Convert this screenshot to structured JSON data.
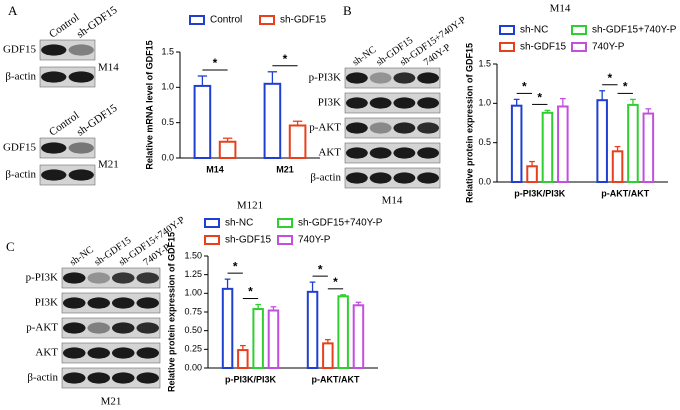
{
  "panel_labels": [
    "A",
    "B",
    "C"
  ],
  "blots": [
    {
      "lanes": [
        "Control",
        "sh-GDF15"
      ],
      "rows": [
        "GDF15",
        "β-actin"
      ],
      "cell_line": "M14"
    },
    {
      "lanes": [
        "Control",
        "sh-GDF15"
      ],
      "rows": [
        "GDF15",
        "β-actin"
      ],
      "cell_line": "M21"
    },
    {
      "lanes": [
        "sh-NC",
        "sh-GDF15",
        "sh-GDF15+740Y-P",
        "740Y-P"
      ],
      "rows": [
        "p-PI3K",
        "PI3K",
        "p-AKT",
        "AKT",
        "β-actin"
      ],
      "cell_line": "M14"
    },
    {
      "lanes": [
        "sh-NC",
        "sh-GDF15",
        "sh-GDF15+740Y-P",
        "740Y-P"
      ],
      "rows": [
        "p-PI3K",
        "PI3K",
        "p-AKT",
        "AKT",
        "β-actin"
      ],
      "cell_line": "M21"
    }
  ],
  "chart_data": [
    {
      "type": "bar",
      "y_label": "Relative mRNA level of GDF15",
      "categories": [
        "M14",
        "M21"
      ],
      "series": [
        {
          "name": "Control",
          "color": "#1f3fd0",
          "values": [
            1.02,
            1.05
          ],
          "errors": [
            0.14,
            0.17
          ]
        },
        {
          "name": "sh-GDF15",
          "color": "#e8401c",
          "values": [
            0.23,
            0.46
          ],
          "errors": [
            0.05,
            0.06
          ]
        }
      ],
      "ylim": [
        0,
        1.5
      ],
      "yticks": [
        {
          "value": 0,
          "label": "0.0"
        },
        {
          "value": 0.5,
          "label": "0.5"
        },
        {
          "value": 1,
          "label": "1.0"
        },
        {
          "value": 1.5,
          "label": "1.5"
        }
      ],
      "annotations": [
        "*",
        "*"
      ]
    },
    {
      "type": "bar",
      "title": "M14",
      "y_label": "Relative protein expression of GDF15",
      "categories": [
        "p-PI3K/PI3K",
        "p-AKT/AKT"
      ],
      "series": [
        {
          "name": "sh-NC",
          "color": "#1f3fd0",
          "values": [
            0.97,
            1.04
          ],
          "errors": [
            0.08,
            0.12
          ]
        },
        {
          "name": "sh-GDF15",
          "color": "#e8401c",
          "values": [
            0.2,
            0.39
          ],
          "errors": [
            0.06,
            0.06
          ]
        },
        {
          "name": "sh-GDF15+740Y-P",
          "color": "#2fcf2f",
          "values": [
            0.88,
            0.98
          ],
          "errors": [
            0.03,
            0.07
          ]
        },
        {
          "name": "740Y-P",
          "color": "#c34fe0",
          "values": [
            0.96,
            0.87
          ],
          "errors": [
            0.1,
            0.06
          ]
        }
      ],
      "ylim": [
        0,
        1.5
      ],
      "yticks": [
        {
          "value": 0,
          "label": "0.0"
        },
        {
          "value": 0.5,
          "label": "0.5"
        },
        {
          "value": 1,
          "label": "1.0"
        },
        {
          "value": 1.5,
          "label": "1.5"
        }
      ],
      "annotations": [
        "*",
        "*",
        "*",
        "*"
      ]
    },
    {
      "type": "bar",
      "title": "M121",
      "y_label": "Relative protein expression of GDF15",
      "categories": [
        "p-PI3K/PI3K",
        "p-AKT/AKT"
      ],
      "series": [
        {
          "name": "sh-NC",
          "color": "#1f3fd0",
          "values": [
            1.06,
            1.02
          ],
          "errors": [
            0.13,
            0.13
          ]
        },
        {
          "name": "sh-GDF15",
          "color": "#e8401c",
          "values": [
            0.24,
            0.33
          ],
          "errors": [
            0.06,
            0.05
          ]
        },
        {
          "name": "sh-GDF15+740Y-P",
          "color": "#2fcf2f",
          "values": [
            0.79,
            0.96
          ],
          "errors": [
            0.06,
            0.02
          ]
        },
        {
          "name": "740Y-P",
          "color": "#c34fe0",
          "values": [
            0.77,
            0.84
          ],
          "errors": [
            0.05,
            0.04
          ]
        }
      ],
      "ylim": [
        0,
        1.5
      ],
      "yticks": [
        {
          "value": 0,
          "label": "0.00"
        },
        {
          "value": 0.25,
          "label": "0.25"
        },
        {
          "value": 0.5,
          "label": "0.50"
        },
        {
          "value": 0.75,
          "label": "0.75"
        },
        {
          "value": 1,
          "label": "1.00"
        },
        {
          "value": 1.25,
          "label": "1.25"
        },
        {
          "value": 1.5,
          "label": "1.50"
        }
      ],
      "annotations": [
        "*",
        "*",
        "*",
        "*"
      ]
    }
  ]
}
